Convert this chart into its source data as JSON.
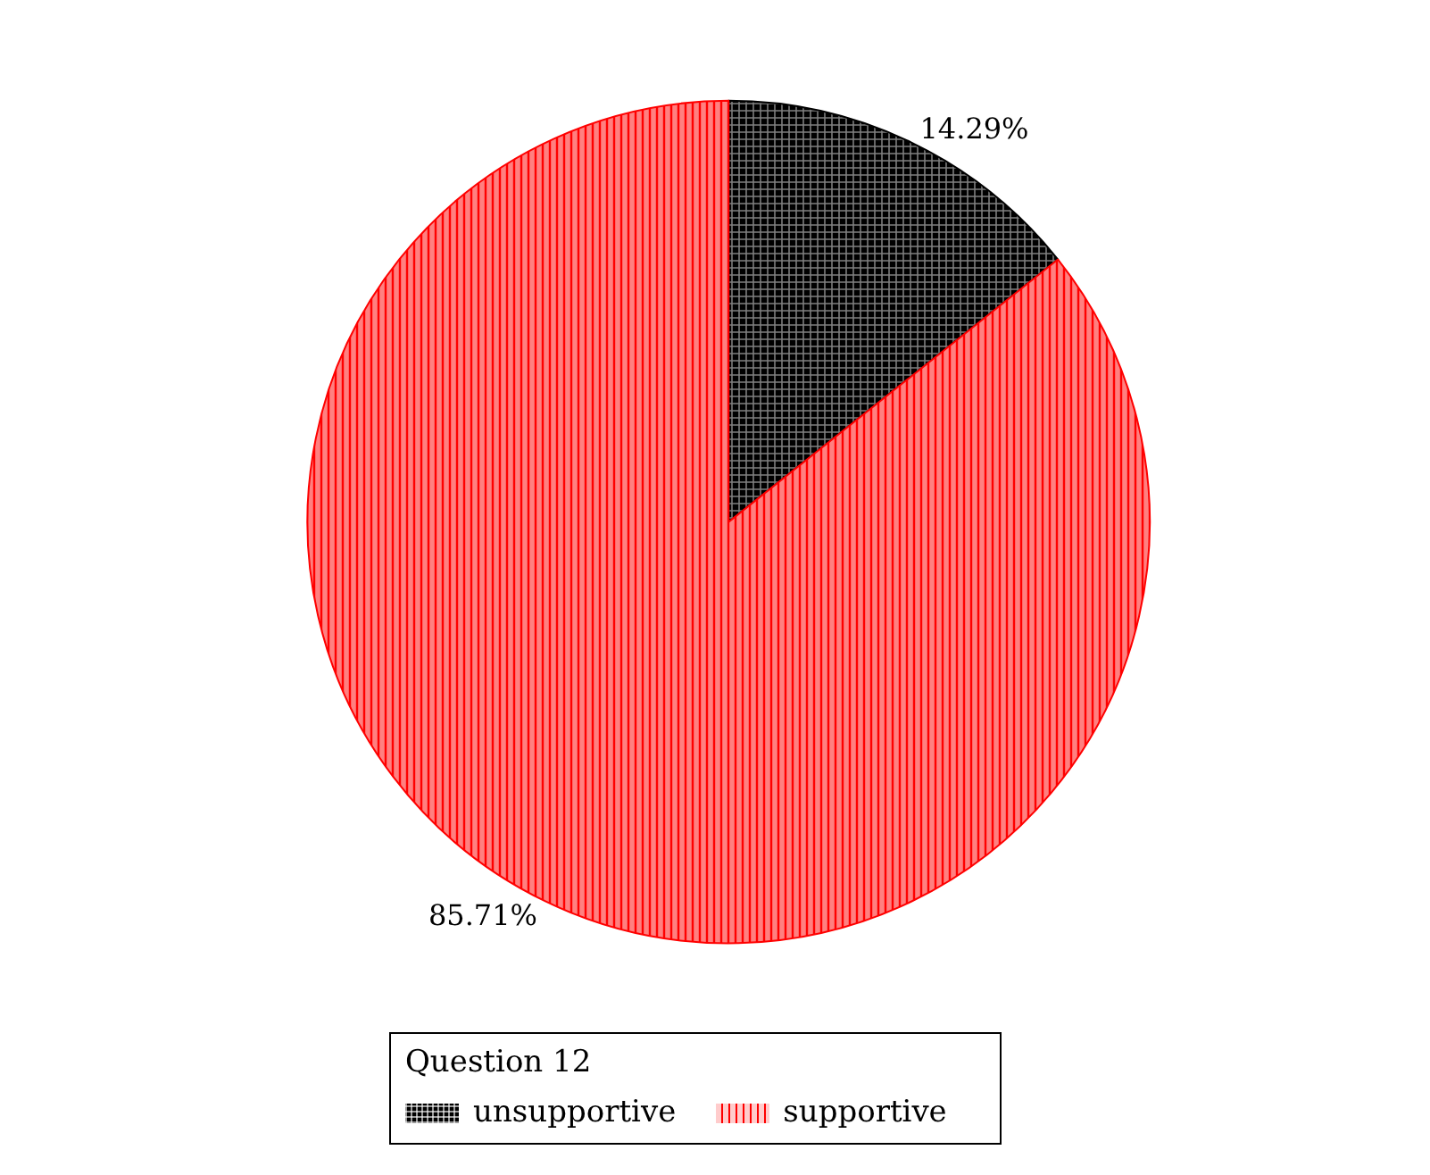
{
  "chart_data": {
    "type": "pie",
    "categories": [
      "unsupportive",
      "supportive"
    ],
    "values": [
      14.29,
      85.71
    ],
    "colors": [
      "#000000",
      "#ff0000"
    ],
    "value_labels": [
      "14.29%",
      "85.71%"
    ],
    "data_labels": true,
    "legend_title": "Question 12",
    "legend": "bottom"
  }
}
